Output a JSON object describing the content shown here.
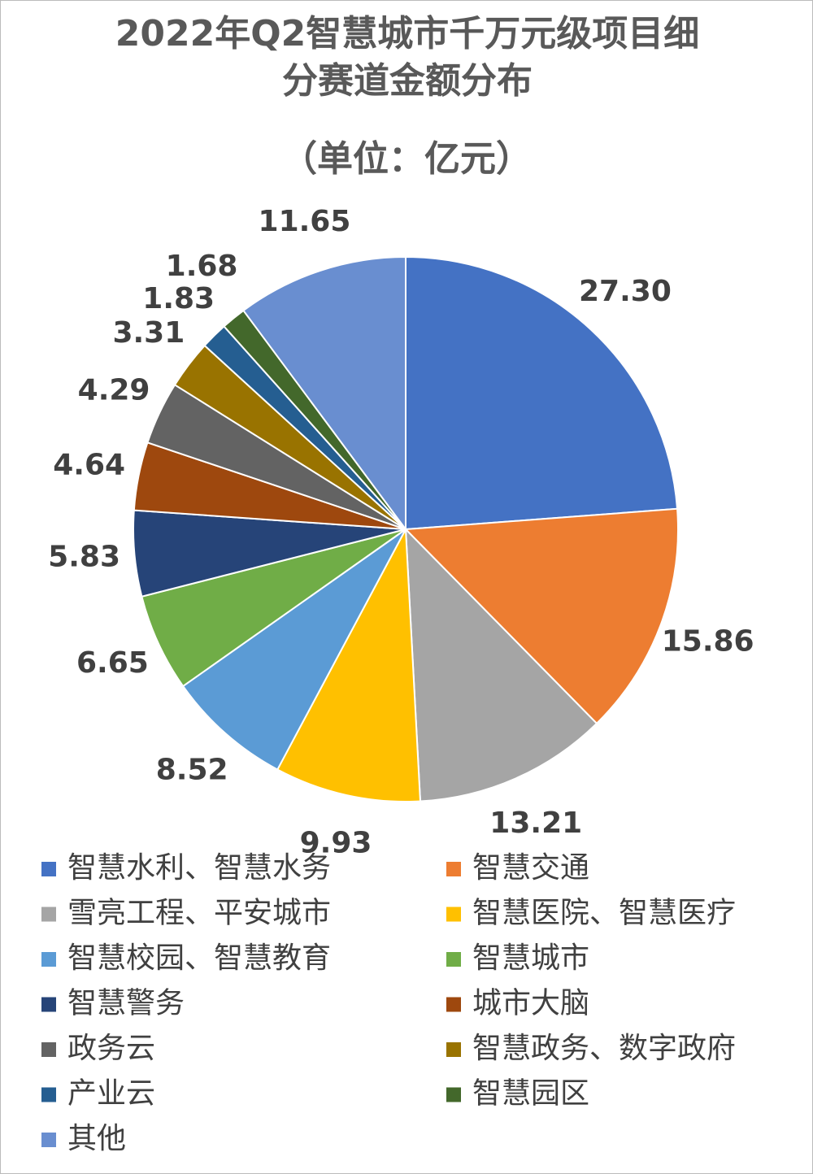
{
  "chart_data": {
    "type": "pie",
    "title": "2022年Q2智慧城市千万元级项目细分赛道金额分布",
    "subtitle": "（单位：亿元）",
    "categories": [
      "智慧水利、智慧水务",
      "智慧交通",
      "雪亮工程、平安城市",
      "智慧医院、智慧医疗",
      "智慧校园、智慧教育",
      "智慧城市",
      "智慧警务",
      "城市大脑",
      "政务云",
      "智慧政务、数字政府",
      "产业云",
      "智慧园区",
      "其他"
    ],
    "values": [
      27.3,
      15.86,
      13.21,
      9.93,
      8.52,
      6.65,
      5.83,
      4.64,
      4.29,
      3.31,
      1.83,
      1.68,
      11.65
    ],
    "value_labels": [
      "27.30",
      "15.86",
      "13.21",
      "9.93",
      "8.52",
      "6.65",
      "5.83",
      "4.64",
      "4.29",
      "3.31",
      "1.83",
      "1.68",
      "11.65"
    ],
    "colors": [
      "#4472c4",
      "#ed7d31",
      "#a5a5a5",
      "#ffc000",
      "#5b9bd5",
      "#70ad47",
      "#264478",
      "#9e480e",
      "#636363",
      "#997300",
      "#255e91",
      "#43682b",
      "#698ed0"
    ],
    "legend": "bottom"
  }
}
